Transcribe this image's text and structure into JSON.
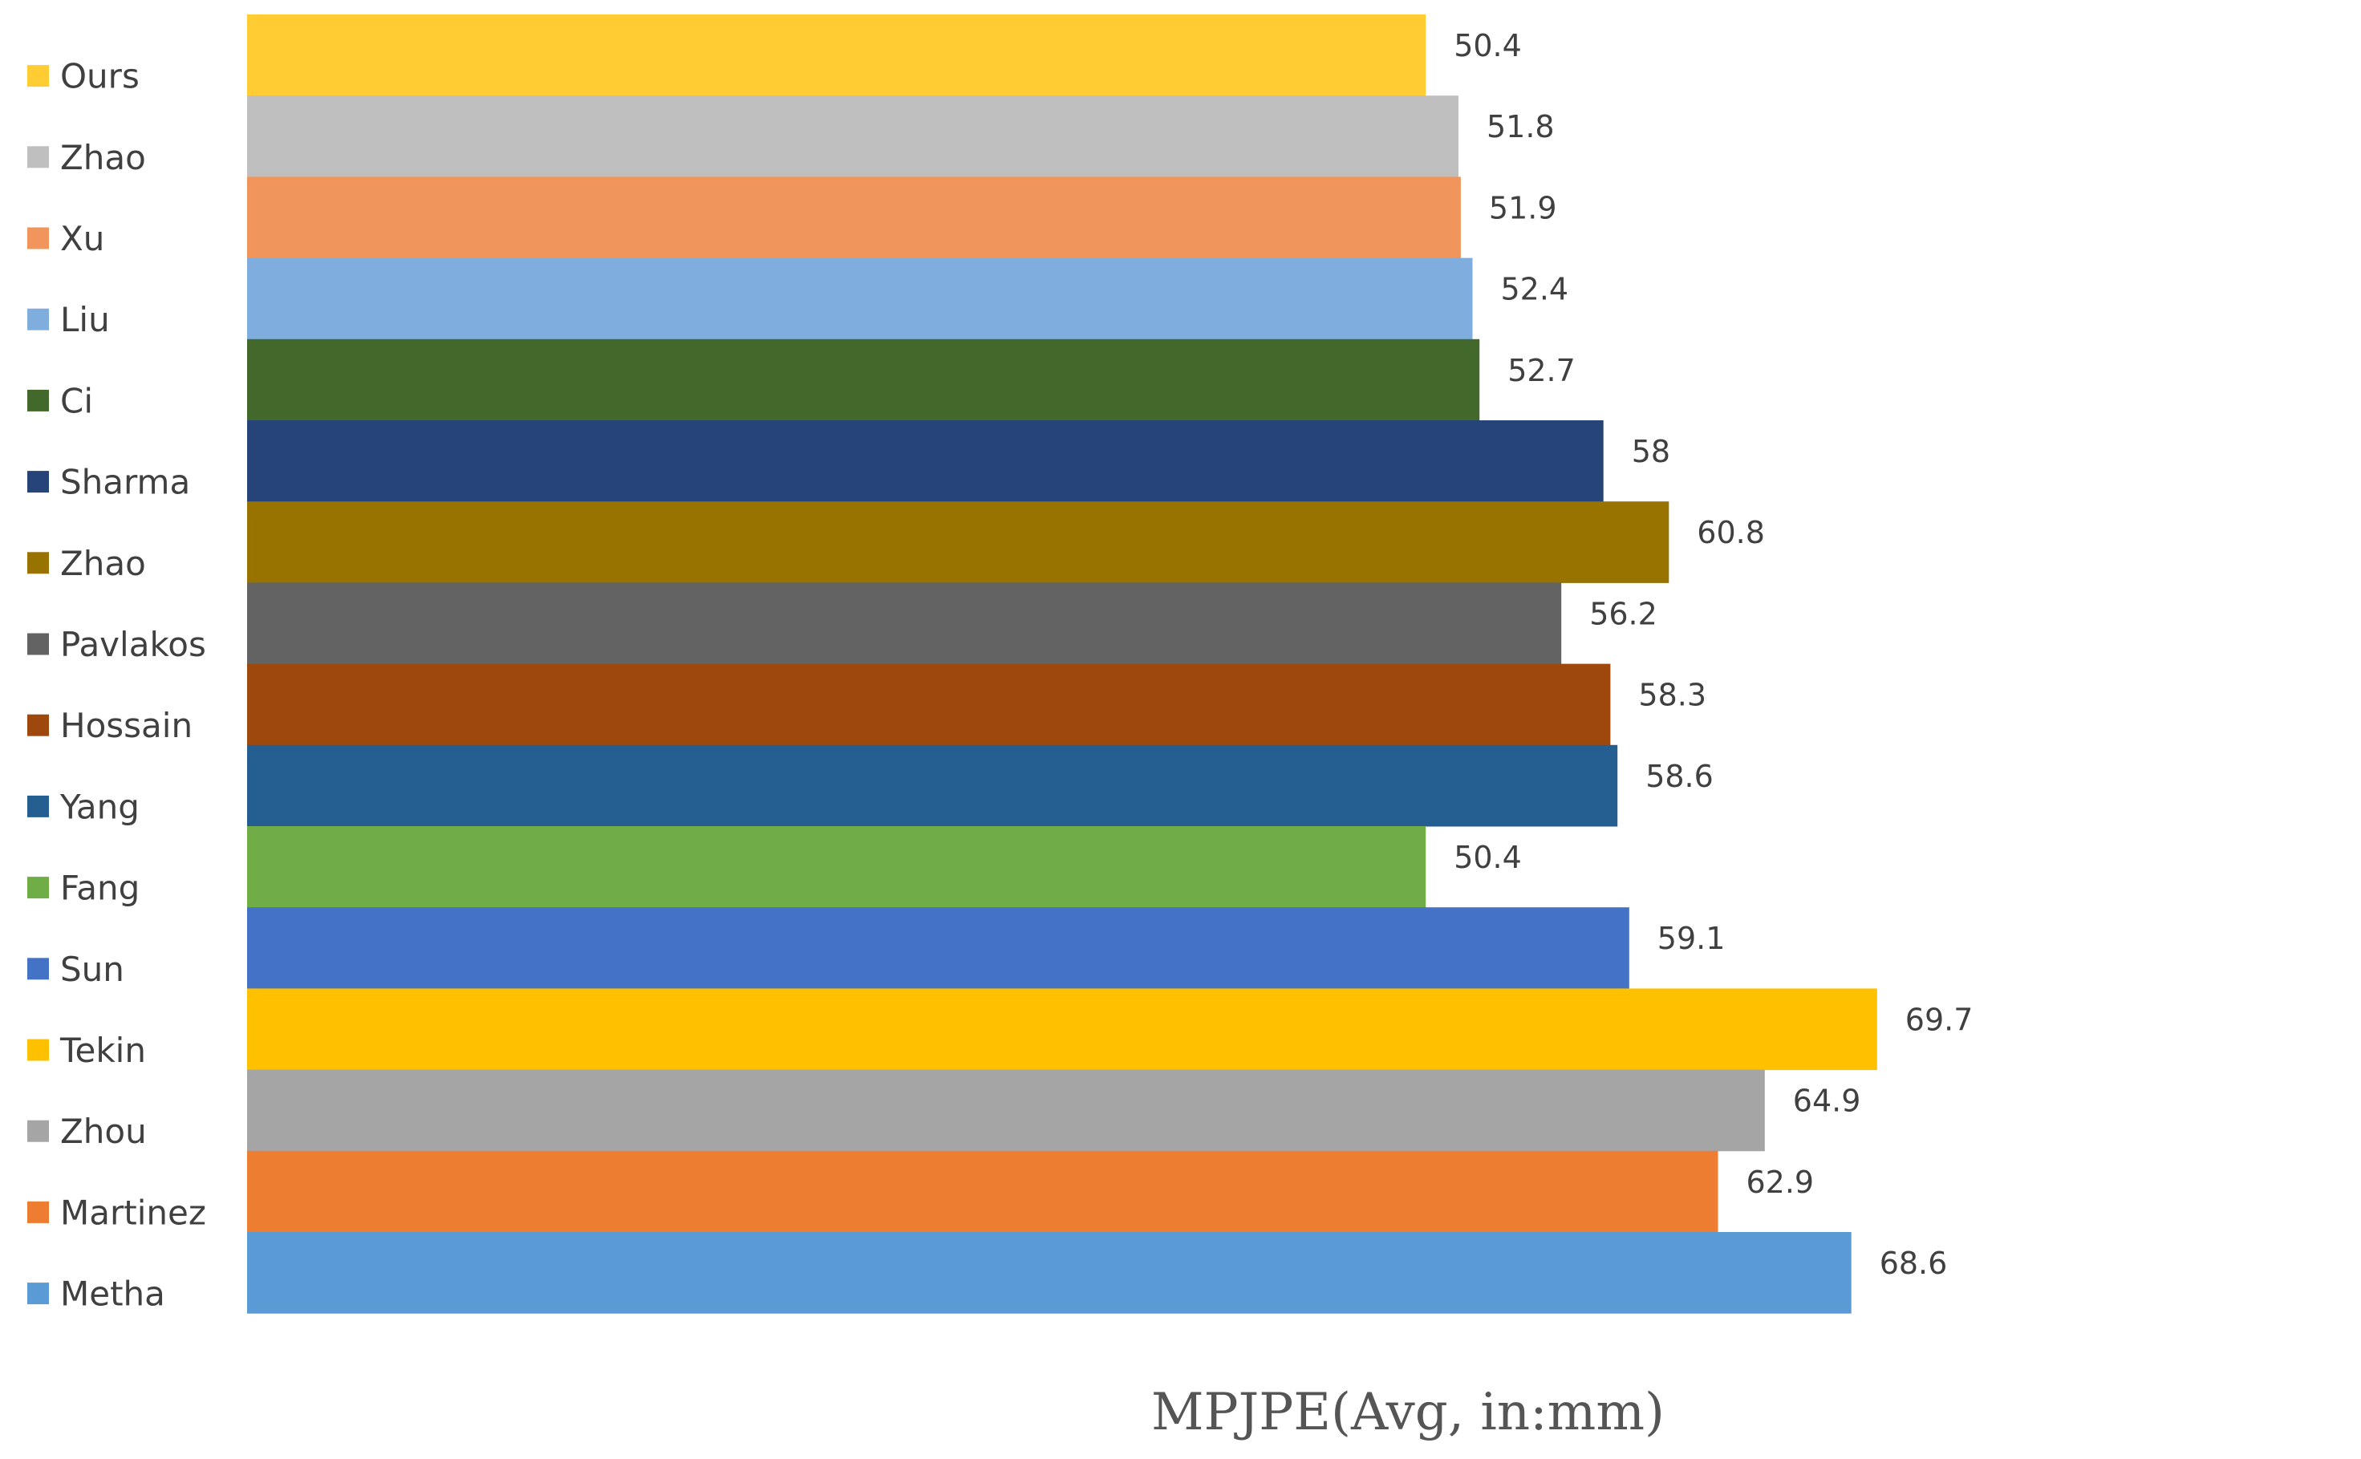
{
  "chart_data": {
    "type": "bar",
    "orientation": "horizontal",
    "xlabel": "MPJPE(Avg, in:mm)",
    "legend_position": "left",
    "grid": false,
    "categories": [
      "Ours",
      "Zhao",
      "Xu",
      "Liu",
      "Ci",
      "Sharma",
      "Zhao",
      "Pavlakos",
      "Hossain",
      "Yang",
      "Fang",
      "Sun",
      "Tekin",
      "Zhou",
      "Martinez",
      "Metha"
    ],
    "values": [
      50.4,
      51.8,
      51.9,
      52.4,
      52.7,
      58,
      60.8,
      56.2,
      58.3,
      58.6,
      50.4,
      59.1,
      69.7,
      64.9,
      62.9,
      68.6
    ],
    "value_labels": [
      "50.4",
      "51.8",
      "51.9",
      "52.4",
      "52.7",
      "58",
      "60.8",
      "56.2",
      "58.3",
      "58.6",
      "50.4",
      "59.1",
      "69.7",
      "64.9",
      "62.9",
      "68.6"
    ],
    "colors": [
      "#FFCC33",
      "#BFBFBF",
      "#F0955B",
      "#7FAEDE",
      "#43682B",
      "#264478",
      "#997300",
      "#636363",
      "#9E480E",
      "#255E91",
      "#70AD47",
      "#4472C4",
      "#FFC000",
      "#A5A5A5",
      "#ED7D31",
      "#5B9BD5"
    ]
  }
}
